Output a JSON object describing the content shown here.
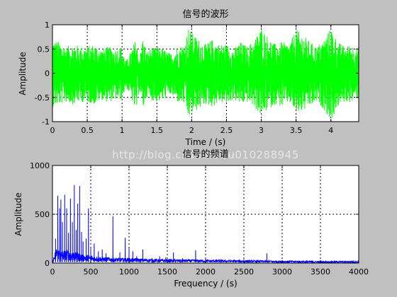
{
  "watermark": "http://blog.csdn.net/u010288945",
  "chart_data": [
    {
      "type": "line",
      "title": "信号的波形",
      "xlabel": "Time / (s)",
      "ylabel": "Amplitude",
      "xlim": [
        0,
        4.4
      ],
      "ylim": [
        -1,
        1
      ],
      "xticks": [
        0,
        0.5,
        1,
        1.5,
        2,
        2.5,
        3,
        3.5,
        4
      ],
      "xtick_labels": [
        "0",
        "0.5",
        "1",
        "1.5",
        "2",
        "2.5",
        "3",
        "3.5",
        "4"
      ],
      "yticks": [
        -1,
        -0.5,
        0,
        0.5,
        1
      ],
      "ytick_labels": [
        "-1",
        "-0.5",
        "0",
        "0.5",
        "1"
      ],
      "grid": true,
      "color": "#00ff00",
      "envelope": {
        "t": [
          0,
          0.1,
          0.2,
          0.3,
          0.4,
          0.5,
          0.6,
          0.7,
          0.8,
          0.9,
          1.0,
          1.05,
          1.1,
          1.15,
          1.2,
          1.25,
          1.3,
          1.35,
          1.4,
          1.5,
          1.6,
          1.7,
          1.8,
          1.9,
          1.95,
          2.0,
          2.1,
          2.2,
          2.3,
          2.4,
          2.5,
          2.6,
          2.7,
          2.8,
          2.9,
          3.0,
          3.1,
          3.2,
          3.3,
          3.4,
          3.5,
          3.6,
          3.7,
          3.8,
          3.9,
          4.0,
          4.1,
          4.2,
          4.3,
          4.4
        ],
        "upper": [
          0.7,
          0.65,
          0.55,
          0.6,
          0.55,
          0.55,
          0.6,
          0.5,
          0.55,
          0.5,
          0.55,
          0.25,
          0.35,
          0.55,
          0.7,
          0.3,
          0.75,
          0.45,
          0.5,
          0.55,
          0.5,
          0.4,
          0.55,
          0.6,
          0.95,
          0.85,
          0.7,
          0.6,
          0.7,
          0.6,
          0.6,
          0.5,
          0.65,
          0.55,
          0.7,
          0.95,
          0.75,
          0.6,
          0.65,
          0.6,
          0.9,
          0.8,
          0.65,
          0.55,
          0.7,
          0.95,
          0.65,
          0.55,
          0.6,
          0.5
        ],
        "lower": [
          -0.7,
          -0.65,
          -0.6,
          -0.65,
          -0.6,
          -0.6,
          -0.65,
          -0.55,
          -0.6,
          -0.55,
          -0.55,
          -0.3,
          -0.4,
          -0.6,
          -0.85,
          -0.35,
          -0.75,
          -0.5,
          -0.55,
          -0.6,
          -0.55,
          -0.45,
          -0.6,
          -0.65,
          -0.95,
          -0.85,
          -0.75,
          -0.65,
          -0.7,
          -0.6,
          -0.65,
          -0.55,
          -0.65,
          -0.6,
          -0.7,
          -0.9,
          -0.75,
          -0.65,
          -0.7,
          -0.6,
          -0.85,
          -0.8,
          -0.7,
          -0.6,
          -0.75,
          -1.0,
          -0.7,
          -0.6,
          -0.6,
          -0.5
        ]
      }
    },
    {
      "type": "line",
      "title": "信号的频谱",
      "xlabel": "Frequency / (s)",
      "ylabel": "Amplitude",
      "xlim": [
        0,
        4000
      ],
      "ylim": [
        0,
        1000
      ],
      "xticks": [
        0,
        500,
        1000,
        1500,
        2000,
        2500,
        3000,
        3500,
        4000
      ],
      "xtick_labels": [
        "0",
        "500",
        "1000",
        "1500",
        "2000",
        "2500",
        "3000",
        "3500",
        "4000"
      ],
      "yticks": [
        0,
        500,
        1000
      ],
      "ytick_labels": [
        "0",
        "500",
        "1000"
      ],
      "grid": true,
      "color": "#0000ff",
      "peaks": [
        {
          "f": 40,
          "a": 250
        },
        {
          "f": 70,
          "a": 690
        },
        {
          "f": 95,
          "a": 560
        },
        {
          "f": 110,
          "a": 650
        },
        {
          "f": 130,
          "a": 420
        },
        {
          "f": 160,
          "a": 700
        },
        {
          "f": 185,
          "a": 560
        },
        {
          "f": 210,
          "a": 310
        },
        {
          "f": 235,
          "a": 660
        },
        {
          "f": 260,
          "a": 420
        },
        {
          "f": 285,
          "a": 800
        },
        {
          "f": 310,
          "a": 340
        },
        {
          "f": 330,
          "a": 610
        },
        {
          "f": 355,
          "a": 790
        },
        {
          "f": 380,
          "a": 320
        },
        {
          "f": 400,
          "a": 220
        },
        {
          "f": 440,
          "a": 250
        },
        {
          "f": 470,
          "a": 560
        },
        {
          "f": 500,
          "a": 160
        },
        {
          "f": 545,
          "a": 200
        },
        {
          "f": 600,
          "a": 120
        },
        {
          "f": 650,
          "a": 140
        },
        {
          "f": 700,
          "a": 100
        },
        {
          "f": 790,
          "a": 480
        },
        {
          "f": 880,
          "a": 110
        },
        {
          "f": 950,
          "a": 260
        },
        {
          "f": 1000,
          "a": 160
        },
        {
          "f": 1050,
          "a": 120
        },
        {
          "f": 1100,
          "a": 70
        },
        {
          "f": 1180,
          "a": 140
        },
        {
          "f": 1300,
          "a": 50
        },
        {
          "f": 1400,
          "a": 70
        },
        {
          "f": 1480,
          "a": 60
        },
        {
          "f": 1580,
          "a": 110
        },
        {
          "f": 1700,
          "a": 50
        },
        {
          "f": 1870,
          "a": 130
        },
        {
          "f": 2000,
          "a": 50
        },
        {
          "f": 2200,
          "a": 40
        },
        {
          "f": 2500,
          "a": 40
        },
        {
          "f": 2800,
          "a": 100
        },
        {
          "f": 3100,
          "a": 30
        },
        {
          "f": 3500,
          "a": 25
        },
        {
          "f": 3900,
          "a": 25
        }
      ],
      "baseline": {
        "f": [
          0,
          60,
          100,
          200,
          300,
          400,
          500,
          700,
          1000,
          1500,
          2000,
          2500,
          3000,
          3500,
          4000
        ],
        "a": [
          20,
          180,
          120,
          140,
          110,
          90,
          80,
          60,
          50,
          40,
          35,
          30,
          25,
          20,
          20
        ]
      }
    }
  ]
}
